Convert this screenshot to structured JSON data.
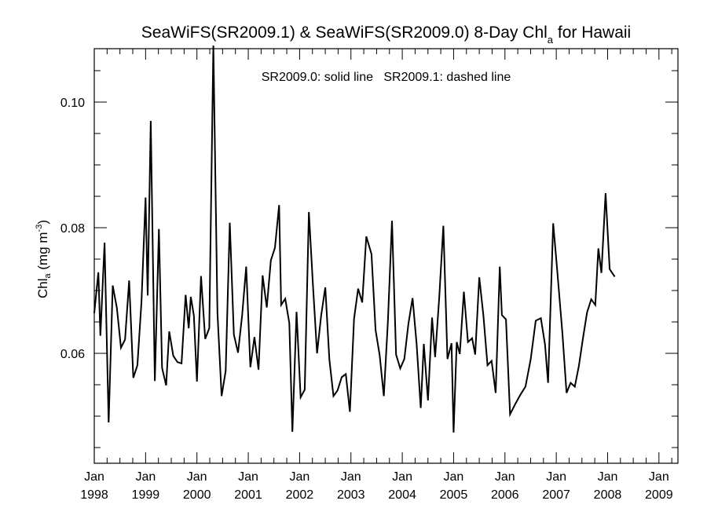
{
  "chart_data": {
    "type": "line",
    "title": {
      "prefix": "SeaWiFS(SR2009.1) & SeaWiFS(SR2009.0) 8-Day Chl",
      "subscript": "a",
      "suffix": " for Hawaii"
    },
    "annotation": "SR2009.0: solid line   SR2009.1: dashed line",
    "ylabel": {
      "main": "Chl",
      "subscript": "a",
      "units_prefix": " (mg m",
      "units_sup": "-3",
      "units_suffix": ")"
    },
    "ylim": [
      0.0425,
      0.1085
    ],
    "yticks": [
      "0.06",
      "0.08",
      "0.10"
    ],
    "ytick_values": [
      0.06,
      0.08,
      0.1
    ],
    "xlim": [
      1998.0,
      2009.37
    ],
    "xticks": [
      {
        "month": "Jan",
        "year": "1998",
        "x": 1998.0
      },
      {
        "month": "Jan",
        "year": "1999",
        "x": 1999.0
      },
      {
        "month": "Jan",
        "year": "2000",
        "x": 2000.0
      },
      {
        "month": "Jan",
        "year": "2001",
        "x": 2001.0
      },
      {
        "month": "Jan",
        "year": "2002",
        "x": 2002.0
      },
      {
        "month": "Jan",
        "year": "2003",
        "x": 2003.0
      },
      {
        "month": "Jan",
        "year": "2004",
        "x": 2004.0
      },
      {
        "month": "Jan",
        "year": "2005",
        "x": 2005.0
      },
      {
        "month": "Jan",
        "year": "2006",
        "x": 2006.0
      },
      {
        "month": "Jan",
        "year": "2007",
        "x": 2007.0
      },
      {
        "month": "Jan",
        "year": "2008",
        "x": 2008.0
      },
      {
        "month": "Jan",
        "year": "2009",
        "x": 2009.0
      }
    ],
    "series": [
      {
        "style": "solid",
        "points": [
          [
            1998.0,
            0.0664
          ],
          [
            1998.08,
            0.0729
          ],
          [
            1998.12,
            0.0628
          ],
          [
            1998.2,
            0.0776
          ],
          [
            1998.28,
            0.049
          ],
          [
            1998.36,
            0.0708
          ],
          [
            1998.44,
            0.0672
          ],
          [
            1998.52,
            0.0609
          ],
          [
            1998.6,
            0.0622
          ],
          [
            1998.68,
            0.0716
          ],
          [
            1998.76,
            0.0561
          ],
          [
            1998.84,
            0.0581
          ],
          [
            1998.92,
            0.0682
          ],
          [
            1999.0,
            0.0848
          ],
          [
            1999.04,
            0.0692
          ],
          [
            1999.1,
            0.097
          ],
          [
            1999.18,
            0.0556
          ],
          [
            1999.26,
            0.0798
          ],
          [
            1999.32,
            0.0577
          ],
          [
            1999.4,
            0.0549
          ],
          [
            1999.46,
            0.0635
          ],
          [
            1999.54,
            0.0596
          ],
          [
            1999.62,
            0.0586
          ],
          [
            1999.7,
            0.0584
          ],
          [
            1999.78,
            0.0693
          ],
          [
            1999.84,
            0.064
          ],
          [
            1999.88,
            0.069
          ],
          [
            1999.94,
            0.066
          ],
          [
            2000.0,
            0.0555
          ],
          [
            2000.08,
            0.0723
          ],
          [
            2000.16,
            0.0623
          ],
          [
            2000.24,
            0.064
          ],
          [
            2000.32,
            0.109
          ],
          [
            2000.4,
            0.0665
          ],
          [
            2000.48,
            0.0532
          ],
          [
            2000.56,
            0.0572
          ],
          [
            2000.64,
            0.0808
          ],
          [
            2000.72,
            0.063
          ],
          [
            2000.8,
            0.0601
          ],
          [
            2000.88,
            0.066
          ],
          [
            2000.96,
            0.0738
          ],
          [
            2001.04,
            0.0578
          ],
          [
            2001.12,
            0.0626
          ],
          [
            2001.2,
            0.0574
          ],
          [
            2001.28,
            0.0724
          ],
          [
            2001.36,
            0.0673
          ],
          [
            2001.44,
            0.0748
          ],
          [
            2001.52,
            0.0768
          ],
          [
            2001.6,
            0.0836
          ],
          [
            2001.64,
            0.0677
          ],
          [
            2001.72,
            0.0687
          ],
          [
            2001.8,
            0.0648
          ],
          [
            2001.86,
            0.0475
          ],
          [
            2001.94,
            0.0666
          ],
          [
            2002.02,
            0.053
          ],
          [
            2002.1,
            0.0542
          ],
          [
            2002.18,
            0.0825
          ],
          [
            2002.26,
            0.0708
          ],
          [
            2002.34,
            0.06
          ],
          [
            2002.42,
            0.066
          ],
          [
            2002.5,
            0.0705
          ],
          [
            2002.58,
            0.059
          ],
          [
            2002.66,
            0.0532
          ],
          [
            2002.74,
            0.0541
          ],
          [
            2002.82,
            0.0562
          ],
          [
            2002.9,
            0.0567
          ],
          [
            2002.98,
            0.0507
          ],
          [
            2003.06,
            0.0655
          ],
          [
            2003.14,
            0.0703
          ],
          [
            2003.22,
            0.0681
          ],
          [
            2003.3,
            0.0786
          ],
          [
            2003.4,
            0.0758
          ],
          [
            2003.48,
            0.0637
          ],
          [
            2003.56,
            0.0597
          ],
          [
            2003.64,
            0.0532
          ],
          [
            2003.72,
            0.0651
          ],
          [
            2003.8,
            0.0811
          ],
          [
            2003.88,
            0.0598
          ],
          [
            2003.96,
            0.0576
          ],
          [
            2004.04,
            0.0591
          ],
          [
            2004.12,
            0.0647
          ],
          [
            2004.2,
            0.0688
          ],
          [
            2004.28,
            0.0614
          ],
          [
            2004.36,
            0.0513
          ],
          [
            2004.42,
            0.0615
          ],
          [
            2004.5,
            0.0525
          ],
          [
            2004.58,
            0.0657
          ],
          [
            2004.64,
            0.0594
          ],
          [
            2004.72,
            0.0688
          ],
          [
            2004.8,
            0.0803
          ],
          [
            2004.88,
            0.0591
          ],
          [
            2004.96,
            0.0616
          ],
          [
            2005.0,
            0.0474
          ],
          [
            2005.06,
            0.0618
          ],
          [
            2005.12,
            0.0599
          ],
          [
            2005.2,
            0.0698
          ],
          [
            2005.28,
            0.0618
          ],
          [
            2005.36,
            0.0624
          ],
          [
            2005.42,
            0.0598
          ],
          [
            2005.5,
            0.0721
          ],
          [
            2005.58,
            0.0661
          ],
          [
            2005.66,
            0.0581
          ],
          [
            2005.74,
            0.0588
          ],
          [
            2005.82,
            0.0537
          ],
          [
            2005.9,
            0.0738
          ],
          [
            2005.94,
            0.0661
          ],
          [
            2006.02,
            0.0654
          ],
          [
            2006.1,
            0.0503
          ],
          [
            2006.2,
            0.0519
          ],
          [
            2006.3,
            0.0534
          ],
          [
            2006.4,
            0.0547
          ],
          [
            2006.5,
            0.059
          ],
          [
            2006.6,
            0.0652
          ],
          [
            2006.7,
            0.0656
          ],
          [
            2006.78,
            0.0614
          ],
          [
            2006.84,
            0.0553
          ],
          [
            2006.94,
            0.0807
          ],
          [
            2007.02,
            0.0731
          ],
          [
            2007.12,
            0.0631
          ],
          [
            2007.2,
            0.0537
          ],
          [
            2007.28,
            0.0553
          ],
          [
            2007.36,
            0.0547
          ],
          [
            2007.44,
            0.058
          ],
          [
            2007.52,
            0.0624
          ],
          [
            2007.6,
            0.0665
          ],
          [
            2007.68,
            0.0686
          ],
          [
            2007.76,
            0.0677
          ],
          [
            2007.82,
            0.0767
          ],
          [
            2007.88,
            0.0728
          ],
          [
            2007.96,
            0.0855
          ],
          [
            2008.04,
            0.0734
          ],
          [
            2008.14,
            0.0722
          ]
        ]
      }
    ]
  }
}
